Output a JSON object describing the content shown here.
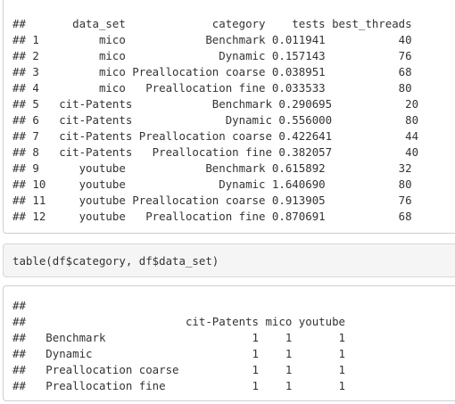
{
  "output_1": {
    "lines": [
      "##       data_set             category    tests best_threads",
      "## 1         mico            Benchmark 0.011941           40",
      "## 2         mico              Dynamic 0.157143           76",
      "## 3         mico Preallocation coarse 0.038951           68",
      "## 4         mico   Preallocation fine 0.033533           80",
      "## 5   cit-Patents            Benchmark 0.290695           20",
      "## 6   cit-Patents              Dynamic 0.556000           80",
      "## 7   cit-Patents Preallocation coarse 0.422641           44",
      "## 8   cit-Patents   Preallocation fine 0.382057           40",
      "## 9      youtube            Benchmark 0.615892           32",
      "## 10     youtube              Dynamic 1.640690           80",
      "## 11     youtube Preallocation coarse 0.913905           76",
      "## 12     youtube   Preallocation fine 0.870691           68"
    ]
  },
  "code_1": {
    "text": "table(df$category, df$data_set)"
  },
  "output_2": {
    "lines": [
      "##",
      "##                        cit-Patents mico youtube",
      "##   Benchmark                      1    1       1",
      "##   Dynamic                        1    1       1",
      "##   Preallocation coarse           1    1       1",
      "##   Preallocation fine             1    1       1"
    ]
  }
}
